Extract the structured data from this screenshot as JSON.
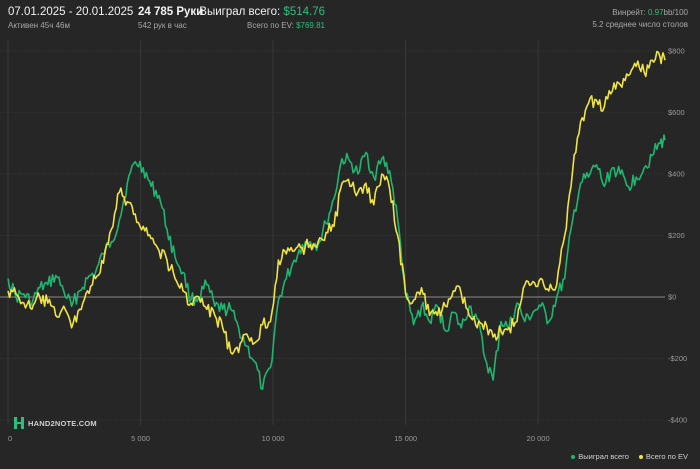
{
  "header": {
    "date_range": "07.01.2025 - 20.01.2025",
    "active_time": "Активен 45ч 46м",
    "hands_count": "24 785 Руки",
    "hands_per_hour": "542 рук в час",
    "won_total_label": "Выиграл всего:",
    "won_total_value": "$514.76",
    "ev_total_label": "Всего по EV:",
    "ev_total_value": "$769.81",
    "winrate_label": "Винрейт:",
    "winrate_value": "0.97",
    "winrate_unit": "bb/100",
    "avg_tables": "5.2 среднее число столов"
  },
  "logo": {
    "text": "HAND2NOTE.COM"
  },
  "legend": {
    "won_label": "Выиграл всего",
    "ev_label": "Всего по EV"
  },
  "colors": {
    "won": "#1fb671",
    "ev": "#f0e443",
    "background": "#262626",
    "grid": "#383838",
    "zero_line": "#8a8a8a",
    "accent_text": "#27c17c"
  },
  "chart_data": {
    "type": "line",
    "xlabel": "",
    "ylabel": "",
    "xlim": [
      0,
      24785
    ],
    "ylim": [
      -400,
      800
    ],
    "x_ticks": [
      0,
      5000,
      10000,
      15000,
      20000
    ],
    "x_tick_labels": [
      "0",
      "5 000",
      "10 000",
      "15 000",
      "20 000"
    ],
    "y_ticks": [
      800,
      600,
      400,
      200,
      0,
      -200,
      -400
    ],
    "y_tick_labels": [
      "$800",
      "$600",
      "$400",
      "$200",
      "$0",
      "-$200",
      "-$400"
    ],
    "grid": true,
    "legend_position": "bottom-right",
    "series": [
      {
        "name": "Выиграл всего",
        "x": [
          0,
          300,
          600,
          900,
          1200,
          1500,
          1800,
          2100,
          2400,
          2700,
          3000,
          3300,
          3600,
          3900,
          4200,
          4500,
          4800,
          5100,
          5400,
          5700,
          6000,
          6300,
          6600,
          6900,
          7200,
          7500,
          7800,
          8100,
          8400,
          8700,
          9000,
          9300,
          9600,
          9900,
          10200,
          10500,
          10800,
          11100,
          11400,
          11700,
          12000,
          12300,
          12600,
          12900,
          13200,
          13500,
          13800,
          14100,
          14400,
          14700,
          15000,
          15300,
          15600,
          15900,
          16200,
          16500,
          16800,
          17100,
          17400,
          17700,
          18000,
          18300,
          18600,
          18900,
          19200,
          19500,
          19800,
          20100,
          20400,
          20700,
          21000,
          21300,
          21600,
          21900,
          22200,
          22500,
          22800,
          23100,
          23400,
          23700,
          24000,
          24300,
          24600,
          24785
        ],
        "y": [
          60,
          0,
          10,
          -20,
          30,
          40,
          70,
          20,
          -30,
          20,
          60,
          80,
          140,
          180,
          250,
          370,
          440,
          420,
          360,
          330,
          220,
          130,
          80,
          -10,
          0,
          40,
          -30,
          -40,
          -40,
          -100,
          -160,
          -210,
          -300,
          -230,
          -10,
          60,
          120,
          170,
          180,
          170,
          240,
          320,
          450,
          440,
          400,
          470,
          390,
          450,
          410,
          250,
          10,
          -90,
          -30,
          -80,
          -30,
          -110,
          -50,
          -100,
          -30,
          -70,
          -200,
          -270,
          -80,
          -100,
          -20,
          -80,
          -50,
          -30,
          -80,
          0,
          60,
          250,
          370,
          390,
          430,
          360,
          420,
          400,
          360,
          390,
          420,
          460,
          500,
          510
        ]
      },
      {
        "name": "Всего по EV",
        "x": [
          0,
          300,
          600,
          900,
          1200,
          1500,
          1800,
          2100,
          2400,
          2700,
          3000,
          3300,
          3600,
          3900,
          4200,
          4500,
          4800,
          5100,
          5400,
          5700,
          6000,
          6300,
          6600,
          6900,
          7200,
          7500,
          7800,
          8100,
          8400,
          8700,
          9000,
          9300,
          9600,
          9900,
          10200,
          10500,
          10800,
          11100,
          11400,
          11700,
          12000,
          12300,
          12600,
          12900,
          13200,
          13500,
          13800,
          14100,
          14400,
          14700,
          15000,
          15300,
          15600,
          15900,
          16200,
          16500,
          16800,
          17100,
          17400,
          17700,
          18000,
          18300,
          18600,
          18900,
          19200,
          19500,
          19800,
          20100,
          20400,
          20700,
          21000,
          21300,
          21600,
          21900,
          22200,
          22500,
          22800,
          23100,
          23400,
          23700,
          24000,
          24300,
          24600,
          24785
        ],
        "y": [
          20,
          10,
          -20,
          -40,
          0,
          -20,
          -60,
          -30,
          -100,
          -40,
          20,
          60,
          110,
          220,
          340,
          310,
          270,
          230,
          190,
          150,
          120,
          60,
          20,
          -20,
          0,
          -40,
          -60,
          -100,
          -180,
          -180,
          -120,
          -150,
          -90,
          -80,
          120,
          140,
          150,
          160,
          170,
          180,
          210,
          230,
          370,
          360,
          340,
          370,
          300,
          400,
          350,
          200,
          10,
          -10,
          30,
          -60,
          -60,
          -30,
          20,
          10,
          -60,
          -100,
          -80,
          -130,
          -110,
          -100,
          -80,
          40,
          50,
          60,
          20,
          40,
          200,
          410,
          570,
          630,
          640,
          620,
          670,
          690,
          720,
          750,
          730,
          770,
          780,
          770
        ]
      }
    ]
  }
}
